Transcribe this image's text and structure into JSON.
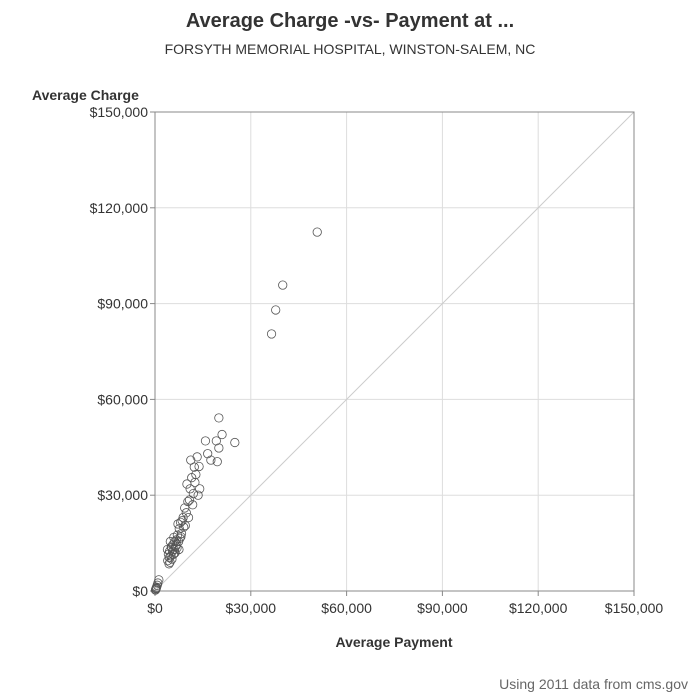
{
  "chart_data": {
    "type": "scatter",
    "title": "Average Charge -vs- Payment at ...",
    "subtitle": "FORSYTH MEMORIAL HOSPITAL, WINSTON-SALEM, NC",
    "xlabel": "Average Payment",
    "ylabel": "Average Charge",
    "footnote": "Using 2011 data from cms.gov",
    "xlim": [
      0,
      150000
    ],
    "ylim": [
      0,
      150000
    ],
    "xticks": [
      0,
      30000,
      60000,
      90000,
      120000,
      150000
    ],
    "yticks": [
      0,
      30000,
      60000,
      90000,
      120000,
      150000
    ],
    "xtick_labels": [
      "$0",
      "$30,000",
      "$60,000",
      "$90,000",
      "$120,000",
      "$150,000"
    ],
    "ytick_labels": [
      "$0",
      "$30,000",
      "$60,000",
      "$90,000",
      "$120,000",
      "$150,000"
    ],
    "grid": true,
    "reference_line": "y = x",
    "colors": {
      "marker": "#555555",
      "grid": "#dddddd",
      "axis": "#888888",
      "reference": "#cccccc"
    },
    "points": [
      [
        50800,
        112400
      ],
      [
        40000,
        95800
      ],
      [
        37800,
        88000
      ],
      [
        36500,
        80500
      ],
      [
        25000,
        46500
      ],
      [
        21000,
        49000
      ],
      [
        20000,
        54200
      ],
      [
        20000,
        44800
      ],
      [
        19200,
        47000
      ],
      [
        19500,
        40500
      ],
      [
        17500,
        41000
      ],
      [
        16500,
        43000
      ],
      [
        15800,
        47000
      ],
      [
        14000,
        32000
      ],
      [
        13800,
        39000
      ],
      [
        13500,
        30000
      ],
      [
        13200,
        42000
      ],
      [
        12800,
        36500
      ],
      [
        12500,
        34000
      ],
      [
        12300,
        38800
      ],
      [
        12000,
        30500
      ],
      [
        11800,
        27000
      ],
      [
        11500,
        35500
      ],
      [
        11200,
        41000
      ],
      [
        11000,
        32000
      ],
      [
        10800,
        28500
      ],
      [
        10500,
        23000
      ],
      [
        10300,
        28000
      ],
      [
        10000,
        33500
      ],
      [
        9800,
        24500
      ],
      [
        9500,
        20500
      ],
      [
        9300,
        26000
      ],
      [
        9000,
        20000
      ],
      [
        8800,
        23000
      ],
      [
        8500,
        22000
      ],
      [
        8300,
        18000
      ],
      [
        8000,
        21500
      ],
      [
        7800,
        16500
      ],
      [
        7600,
        19500
      ],
      [
        7400,
        15500
      ],
      [
        7200,
        21000
      ],
      [
        7000,
        17500
      ],
      [
        6900,
        13500
      ],
      [
        6700,
        16000
      ],
      [
        6500,
        14000
      ],
      [
        6300,
        12000
      ],
      [
        6200,
        15500
      ],
      [
        6000,
        13000
      ],
      [
        5800,
        11500
      ],
      [
        5600,
        14500
      ],
      [
        5500,
        12500
      ],
      [
        5300,
        10000
      ],
      [
        5200,
        13500
      ],
      [
        5000,
        11000
      ],
      [
        4800,
        15500
      ],
      [
        4700,
        9000
      ],
      [
        4600,
        12500
      ],
      [
        4500,
        10500
      ],
      [
        4400,
        8500
      ],
      [
        4200,
        11500
      ],
      [
        4000,
        9500
      ],
      [
        3900,
        13000
      ],
      [
        5100,
        13800
      ],
      [
        6800,
        14600
      ],
      [
        7500,
        13000
      ],
      [
        8100,
        17000
      ],
      [
        6100,
        11800
      ],
      [
        5900,
        16800
      ],
      [
        1200,
        3500
      ],
      [
        900,
        2500
      ],
      [
        700,
        1800
      ],
      [
        500,
        1200
      ],
      [
        300,
        700
      ],
      [
        200,
        400
      ],
      [
        400,
        900
      ],
      [
        150,
        300
      ]
    ]
  }
}
